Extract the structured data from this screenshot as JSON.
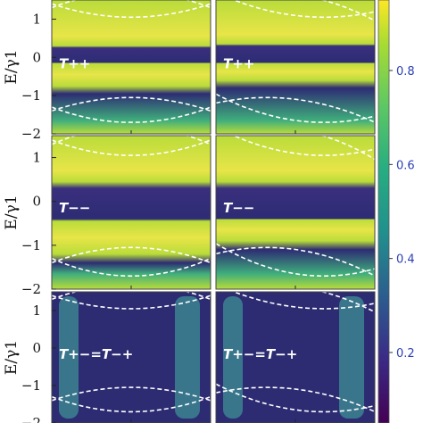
{
  "chart_data": {
    "type": "heatmap",
    "colormap": "viridis",
    "ylabel": "E/γ1",
    "ylim": [
      -2,
      1.5
    ],
    "y_ticks": [
      "1",
      "0",
      "−1",
      "−2"
    ],
    "colorbar": {
      "range": [
        0.05,
        0.95
      ],
      "ticks": [
        "0.8",
        "0.6",
        "0.4",
        "0.2"
      ]
    },
    "grid": {
      "rows": 3,
      "cols": 2
    },
    "panels": [
      {
        "row": 0,
        "col": 0,
        "label": "T++",
        "bright_bands": [
          [
            -0.75,
            -0.15
          ],
          [
            0.25,
            1.5
          ]
        ],
        "dark_band": [
          -0.15,
          0.25
        ]
      },
      {
        "row": 0,
        "col": 1,
        "label": "T++",
        "bright_bands": [
          [
            -0.6,
            -0.15
          ],
          [
            0.3,
            1.5
          ]
        ],
        "dark_band": [
          -0.15,
          0.3
        ]
      },
      {
        "row": 1,
        "col": 0,
        "label": "T−−",
        "bright_bands": [
          [
            -1.2,
            -0.45
          ],
          [
            0.4,
            1.2
          ]
        ],
        "dark_band": [
          -0.4,
          0.3
        ]
      },
      {
        "row": 1,
        "col": 1,
        "label": "T−−",
        "bright_bands": [
          [
            -0.9,
            -0.4
          ],
          [
            0.4,
            1.3
          ]
        ],
        "dark_band": [
          -0.4,
          0.3
        ]
      },
      {
        "row": 2,
        "col": 0,
        "label": "T+−=T−+",
        "bright_bands": [],
        "dark_band": [
          -2,
          1.5
        ]
      },
      {
        "row": 2,
        "col": 1,
        "label": "T+−=T−+",
        "bright_bands": [],
        "dark_band": [
          -2,
          1.5
        ]
      }
    ]
  }
}
